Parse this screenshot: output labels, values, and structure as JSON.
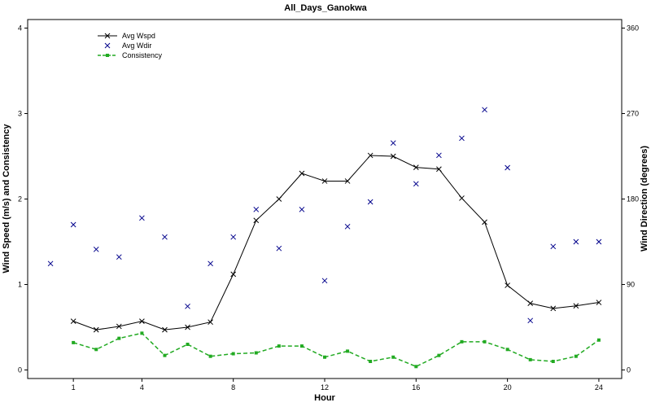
{
  "chart_data": {
    "type": "line",
    "title": "All_Days_Ganokwa",
    "xlabel": "Hour",
    "ylabel": "Wind Speed (m/s) and Consistency",
    "y2label": "Wind Direction (degrees)",
    "xlim": [
      -1,
      25
    ],
    "ylim": [
      -0.1,
      4.1
    ],
    "y2lim": [
      -9,
      369
    ],
    "xticks": [
      1,
      4,
      8,
      12,
      16,
      20,
      24
    ],
    "yticks": [
      0,
      1,
      2,
      3,
      4
    ],
    "y2ticks": [
      0,
      90,
      180,
      270,
      360
    ],
    "legend_position": "top-left",
    "series": [
      {
        "name": "Avg Wspd",
        "axis": "left",
        "style": "line-with-x-markers",
        "color": "#000000",
        "x": [
          1,
          2,
          3,
          4,
          5,
          6,
          7,
          8,
          9,
          10,
          11,
          12,
          13,
          14,
          15,
          16,
          17,
          18,
          19,
          20,
          21,
          22,
          23,
          24
        ],
        "values": [
          0.57,
          0.47,
          0.51,
          0.57,
          0.47,
          0.5,
          0.56,
          1.12,
          1.75,
          2.0,
          2.3,
          2.21,
          2.21,
          2.51,
          2.5,
          2.37,
          2.35,
          2.01,
          1.73,
          0.99,
          0.78,
          0.72,
          0.75,
          0.79
        ]
      },
      {
        "name": "Avg Wdir",
        "axis": "right",
        "style": "x-markers",
        "color": "#00008b",
        "x": [
          0,
          1,
          2,
          3,
          4,
          5,
          6,
          7,
          8,
          9,
          10,
          11,
          12,
          13,
          14,
          15,
          16,
          17,
          18,
          19,
          20,
          21,
          22,
          23,
          24
        ],
        "values": [
          112,
          153,
          127,
          119,
          160,
          140,
          67,
          112,
          140,
          169,
          128,
          169,
          94,
          151,
          177,
          239,
          196,
          226,
          244,
          274,
          213,
          52,
          130,
          135,
          135
        ]
      },
      {
        "name": "Consistency",
        "axis": "left",
        "style": "dashed-with-square-markers",
        "color": "#22aa22",
        "x": [
          1,
          2,
          3,
          4,
          5,
          6,
          7,
          8,
          9,
          10,
          11,
          12,
          13,
          14,
          15,
          16,
          17,
          18,
          19,
          20,
          21,
          22,
          23,
          24
        ],
        "values": [
          0.32,
          0.24,
          0.37,
          0.43,
          0.17,
          0.3,
          0.16,
          0.19,
          0.2,
          0.28,
          0.28,
          0.15,
          0.22,
          0.1,
          0.15,
          0.04,
          0.17,
          0.33,
          0.33,
          0.24,
          0.12,
          0.1,
          0.16,
          0.35
        ]
      }
    ]
  }
}
